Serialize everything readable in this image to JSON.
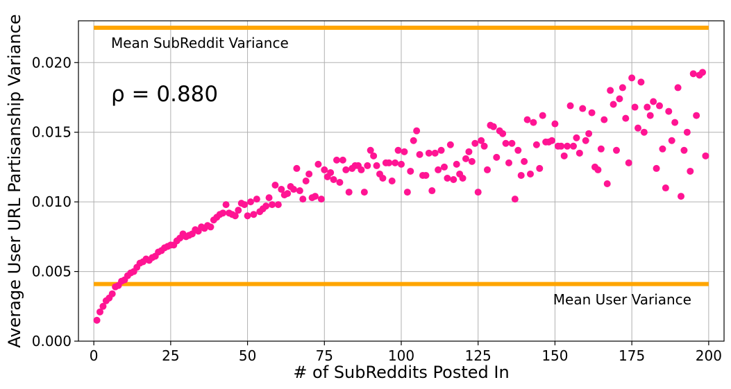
{
  "chart_data": {
    "type": "scatter",
    "xlabel": "# of SubReddits Posted In",
    "ylabel": "Average User URL Partisanship Variance",
    "xlim": [
      -5,
      205
    ],
    "ylim": [
      0,
      0.023
    ],
    "xticks": [
      0,
      25,
      50,
      75,
      100,
      125,
      150,
      175,
      200
    ],
    "xtick_labels": [
      "0",
      "25",
      "50",
      "75",
      "100",
      "125",
      "150",
      "175",
      "200"
    ],
    "yticks": [
      0,
      0.005,
      0.01,
      0.015,
      0.02
    ],
    "ytick_labels": [
      "0.000",
      "0.005",
      "0.010",
      "0.015",
      "0.020"
    ],
    "grid": true,
    "correlation_label": "ρ = 0.880",
    "point_color": "#ff1493",
    "reference_color": "#ffa500",
    "reference_lines": [
      {
        "name": "Mean SubReddit Variance",
        "y": 0.0225,
        "x_range": [
          0,
          200
        ],
        "label_position": "left-below"
      },
      {
        "name": "Mean User Variance",
        "y": 0.0041,
        "x_range": [
          0,
          200
        ],
        "label_position": "right-below"
      }
    ],
    "points": [
      [
        1,
        0.0015
      ],
      [
        2,
        0.0021
      ],
      [
        3,
        0.0025
      ],
      [
        4,
        0.0029
      ],
      [
        5,
        0.0031
      ],
      [
        6,
        0.0034
      ],
      [
        7,
        0.0039
      ],
      [
        8,
        0.004
      ],
      [
        9,
        0.0043
      ],
      [
        10,
        0.0044
      ],
      [
        11,
        0.0047
      ],
      [
        12,
        0.0049
      ],
      [
        13,
        0.005
      ],
      [
        14,
        0.0053
      ],
      [
        15,
        0.0056
      ],
      [
        16,
        0.0057
      ],
      [
        17,
        0.0059
      ],
      [
        18,
        0.0058
      ],
      [
        19,
        0.006
      ],
      [
        20,
        0.0061
      ],
      [
        21,
        0.0064
      ],
      [
        22,
        0.0065
      ],
      [
        23,
        0.0067
      ],
      [
        24,
        0.0068
      ],
      [
        25,
        0.0069
      ],
      [
        26,
        0.0069
      ],
      [
        27,
        0.0072
      ],
      [
        28,
        0.0074
      ],
      [
        29,
        0.0077
      ],
      [
        30,
        0.0075
      ],
      [
        31,
        0.0076
      ],
      [
        32,
        0.0077
      ],
      [
        33,
        0.008
      ],
      [
        34,
        0.0079
      ],
      [
        35,
        0.0082
      ],
      [
        36,
        0.0081
      ],
      [
        37,
        0.0083
      ],
      [
        38,
        0.0082
      ],
      [
        39,
        0.0087
      ],
      [
        40,
        0.0089
      ],
      [
        41,
        0.0091
      ],
      [
        42,
        0.0092
      ],
      [
        43,
        0.0098
      ],
      [
        44,
        0.0092
      ],
      [
        45,
        0.0091
      ],
      [
        46,
        0.009
      ],
      [
        47,
        0.0094
      ],
      [
        48,
        0.0099
      ],
      [
        49,
        0.0098
      ],
      [
        50,
        0.009
      ],
      [
        51,
        0.01
      ],
      [
        52,
        0.0091
      ],
      [
        53,
        0.0102
      ],
      [
        54,
        0.0093
      ],
      [
        55,
        0.0095
      ],
      [
        56,
        0.0097
      ],
      [
        57,
        0.0103
      ],
      [
        58,
        0.0098
      ],
      [
        59,
        0.0112
      ],
      [
        60,
        0.0098
      ],
      [
        61,
        0.0109
      ],
      [
        62,
        0.0105
      ],
      [
        63,
        0.0106
      ],
      [
        64,
        0.0111
      ],
      [
        65,
        0.0109
      ],
      [
        66,
        0.0124
      ],
      [
        67,
        0.0108
      ],
      [
        68,
        0.0102
      ],
      [
        69,
        0.0115
      ],
      [
        70,
        0.012
      ],
      [
        71,
        0.0103
      ],
      [
        72,
        0.0104
      ],
      [
        73,
        0.0127
      ],
      [
        74,
        0.0102
      ],
      [
        75,
        0.0123
      ],
      [
        76,
        0.0118
      ],
      [
        77,
        0.0121
      ],
      [
        78,
        0.0116
      ],
      [
        79,
        0.013
      ],
      [
        80,
        0.0114
      ],
      [
        81,
        0.013
      ],
      [
        82,
        0.0123
      ],
      [
        83,
        0.0107
      ],
      [
        84,
        0.0124
      ],
      [
        85,
        0.0126
      ],
      [
        86,
        0.0126
      ],
      [
        87,
        0.0123
      ],
      [
        88,
        0.0107
      ],
      [
        89,
        0.0126
      ],
      [
        90,
        0.0137
      ],
      [
        91,
        0.0133
      ],
      [
        92,
        0.0126
      ],
      [
        93,
        0.012
      ],
      [
        94,
        0.0117
      ],
      [
        95,
        0.0128
      ],
      [
        96,
        0.0128
      ],
      [
        97,
        0.0115
      ],
      [
        98,
        0.0128
      ],
      [
        99,
        0.0137
      ],
      [
        100,
        0.0127
      ],
      [
        101,
        0.0136
      ],
      [
        102,
        0.0107
      ],
      [
        103,
        0.0122
      ],
      [
        104,
        0.0144
      ],
      [
        105,
        0.0151
      ],
      [
        106,
        0.0134
      ],
      [
        107,
        0.0119
      ],
      [
        108,
        0.0119
      ],
      [
        109,
        0.0135
      ],
      [
        110,
        0.0108
      ],
      [
        111,
        0.0135
      ],
      [
        112,
        0.0123
      ],
      [
        113,
        0.0137
      ],
      [
        114,
        0.0125
      ],
      [
        115,
        0.0117
      ],
      [
        116,
        0.0141
      ],
      [
        117,
        0.0116
      ],
      [
        118,
        0.0127
      ],
      [
        119,
        0.012
      ],
      [
        120,
        0.0117
      ],
      [
        121,
        0.0131
      ],
      [
        122,
        0.0136
      ],
      [
        123,
        0.0129
      ],
      [
        124,
        0.0142
      ],
      [
        125,
        0.0107
      ],
      [
        126,
        0.0144
      ],
      [
        127,
        0.014
      ],
      [
        128,
        0.0123
      ],
      [
        129,
        0.0155
      ],
      [
        130,
        0.0154
      ],
      [
        131,
        0.0132
      ],
      [
        132,
        0.0151
      ],
      [
        133,
        0.0149
      ],
      [
        134,
        0.0142
      ],
      [
        135,
        0.0128
      ],
      [
        136,
        0.0142
      ],
      [
        137,
        0.0102
      ],
      [
        138,
        0.0137
      ],
      [
        139,
        0.0119
      ],
      [
        140,
        0.0129
      ],
      [
        141,
        0.0159
      ],
      [
        142,
        0.012
      ],
      [
        143,
        0.0157
      ],
      [
        144,
        0.0141
      ],
      [
        145,
        0.0124
      ],
      [
        146,
        0.0162
      ],
      [
        147,
        0.0143
      ],
      [
        148,
        0.0143
      ],
      [
        149,
        0.0144
      ],
      [
        150,
        0.0156
      ],
      [
        151,
        0.014
      ],
      [
        152,
        0.014
      ],
      [
        153,
        0.0133
      ],
      [
        154,
        0.014
      ],
      [
        155,
        0.0169
      ],
      [
        156,
        0.014
      ],
      [
        157,
        0.0146
      ],
      [
        158,
        0.0135
      ],
      [
        159,
        0.0167
      ],
      [
        160,
        0.0144
      ],
      [
        161,
        0.0149
      ],
      [
        162,
        0.0164
      ],
      [
        163,
        0.0125
      ],
      [
        164,
        0.0123
      ],
      [
        165,
        0.0138
      ],
      [
        166,
        0.0159
      ],
      [
        167,
        0.0113
      ],
      [
        168,
        0.018
      ],
      [
        169,
        0.017
      ],
      [
        170,
        0.0137
      ],
      [
        171,
        0.0174
      ],
      [
        172,
        0.0182
      ],
      [
        173,
        0.016
      ],
      [
        174,
        0.0128
      ],
      [
        175,
        0.0189
      ],
      [
        176,
        0.0168
      ],
      [
        177,
        0.0153
      ],
      [
        178,
        0.0186
      ],
      [
        179,
        0.015
      ],
      [
        180,
        0.0168
      ],
      [
        181,
        0.0162
      ],
      [
        182,
        0.0172
      ],
      [
        183,
        0.0124
      ],
      [
        184,
        0.0169
      ],
      [
        185,
        0.0138
      ],
      [
        186,
        0.011
      ],
      [
        187,
        0.0165
      ],
      [
        188,
        0.0144
      ],
      [
        189,
        0.0157
      ],
      [
        190,
        0.0182
      ],
      [
        191,
        0.0104
      ],
      [
        192,
        0.0137
      ],
      [
        193,
        0.015
      ],
      [
        194,
        0.0122
      ],
      [
        195,
        0.0192
      ],
      [
        196,
        0.0162
      ],
      [
        197,
        0.0191
      ],
      [
        198,
        0.0193
      ],
      [
        199,
        0.0133
      ]
    ]
  }
}
